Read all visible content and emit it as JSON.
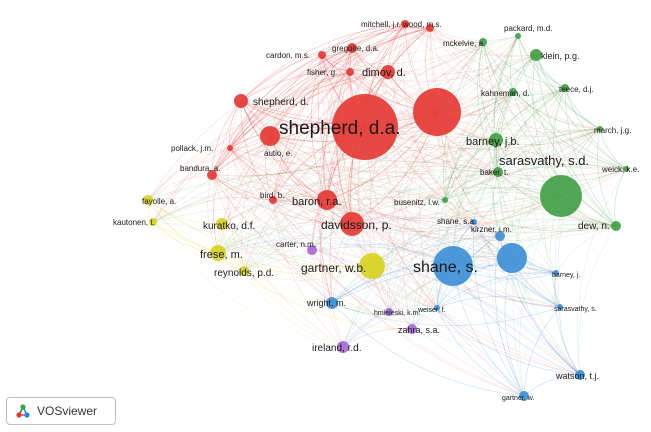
{
  "app": {
    "logo_label": "VOSviewer",
    "logo_icon": "vosviewer-logo-icon"
  },
  "colors": {
    "red": "#e53935",
    "green": "#43a047",
    "blue": "#3d8fd6",
    "yellow": "#d8d21e",
    "purple": "#a869d6",
    "background": "#ffffff"
  },
  "clusters": [
    "red",
    "green",
    "blue",
    "yellow",
    "purple"
  ],
  "nodes": [
    {
      "label": "mitchell, j.r.",
      "cluster": "red"
    },
    {
      "label": "wood, m.s.",
      "cluster": "red"
    },
    {
      "label": "cardon, m.s.",
      "cluster": "red"
    },
    {
      "label": "gregoire, d.a.",
      "cluster": "red"
    },
    {
      "label": "fisher, g.",
      "cluster": "red"
    },
    {
      "label": "dimov, d.",
      "cluster": "red"
    },
    {
      "label": "shepherd, d.",
      "cluster": "red"
    },
    {
      "label": "shepherd, d.a.",
      "cluster": "red"
    },
    {
      "label": "pollack, j.m.",
      "cluster": "red"
    },
    {
      "label": "autio, e.",
      "cluster": "red"
    },
    {
      "label": "bandura, a.",
      "cluster": "red"
    },
    {
      "label": "bird, b.",
      "cluster": "red"
    },
    {
      "label": "baron, r.a.",
      "cluster": "red"
    },
    {
      "label": "davidsson, p.",
      "cluster": "red"
    },
    {
      "label": "",
      "cluster": "red"
    },
    {
      "label": "packard, m.d.",
      "cluster": "green"
    },
    {
      "label": "mckelvie, a.",
      "cluster": "green"
    },
    {
      "label": "klein, p.g.",
      "cluster": "green"
    },
    {
      "label": "kahneman, d.",
      "cluster": "green"
    },
    {
      "label": "teece, d.j.",
      "cluster": "green"
    },
    {
      "label": "barney, j.b.",
      "cluster": "green"
    },
    {
      "label": "march, j.g.",
      "cluster": "green"
    },
    {
      "label": "baker, t.",
      "cluster": "green"
    },
    {
      "label": "weick, k.e.",
      "cluster": "green"
    },
    {
      "label": "sarasvathy, s.d.",
      "cluster": "green"
    },
    {
      "label": "busenitz, l.w.",
      "cluster": "green"
    },
    {
      "label": "dew, n.",
      "cluster": "green"
    },
    {
      "label": "shane, s.a.",
      "cluster": "blue"
    },
    {
      "label": "kirzner, i.m.",
      "cluster": "blue"
    },
    {
      "label": "shane, s.",
      "cluster": "blue"
    },
    {
      "label": "",
      "cluster": "blue"
    },
    {
      "label": "barney, j.",
      "cluster": "blue"
    },
    {
      "label": "wright, m.",
      "cluster": "blue"
    },
    {
      "label": "sarasvathy, s.",
      "cluster": "blue"
    },
    {
      "label": "weiser, f.",
      "cluster": "blue"
    },
    {
      "label": "watson, t.j.",
      "cluster": "blue"
    },
    {
      "label": "gartner, w.",
      "cluster": "blue"
    },
    {
      "label": "fayolle, a.",
      "cluster": "yellow"
    },
    {
      "label": "kautonen, t.",
      "cluster": "yellow"
    },
    {
      "label": "kuratko, d.f.",
      "cluster": "yellow"
    },
    {
      "label": "frese, m.",
      "cluster": "yellow"
    },
    {
      "label": "reynolds, p.d.",
      "cluster": "yellow"
    },
    {
      "label": "gartner, w.b.",
      "cluster": "yellow"
    },
    {
      "label": "carter, n.m.",
      "cluster": "purple"
    },
    {
      "label": "hmieleski, k.m.",
      "cluster": "purple"
    },
    {
      "label": "zahra, s.a.",
      "cluster": "purple"
    },
    {
      "label": "ireland, r.d.",
      "cluster": "purple"
    }
  ]
}
